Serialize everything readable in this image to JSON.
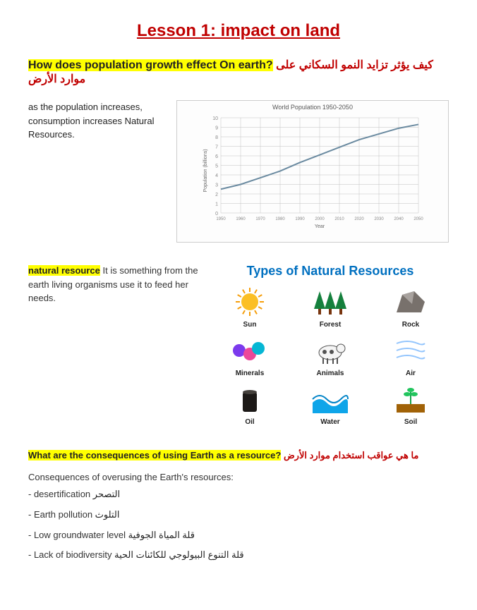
{
  "title": "Lesson 1: impact on land",
  "q1": {
    "text_en": "How does population growth effect On earth?",
    "text_ar": "كيف يؤثر تزايد النمو السكاني على موارد الأرض"
  },
  "s1_text": "as the population increases, consumption increases Natural Resources.",
  "chart": {
    "title": "World Population 1950-2050",
    "x_label": "Year",
    "y_label": "Population (billions)",
    "x_start": 1950,
    "x_end": 2050,
    "y_start": 0,
    "y_end": 10,
    "x_ticks": [
      "1950",
      "1960",
      "1970",
      "1980",
      "1990",
      "2000",
      "2010",
      "2020",
      "2030",
      "2040",
      "2050"
    ],
    "line_color": "#6a8aa0",
    "grid_color": "#c0c0c0",
    "points": [
      {
        "x": 1950,
        "y": 2.5
      },
      {
        "x": 1960,
        "y": 3.0
      },
      {
        "x": 1970,
        "y": 3.7
      },
      {
        "x": 1980,
        "y": 4.4
      },
      {
        "x": 1990,
        "y": 5.3
      },
      {
        "x": 2000,
        "y": 6.1
      },
      {
        "x": 2010,
        "y": 6.9
      },
      {
        "x": 2020,
        "y": 7.7
      },
      {
        "x": 2030,
        "y": 8.3
      },
      {
        "x": 2040,
        "y": 8.9
      },
      {
        "x": 2050,
        "y": 9.3
      }
    ]
  },
  "s2": {
    "term": "natural resource",
    "def": " It is something from the earth living organisms use it to feed her needs."
  },
  "resources": {
    "title": "Types of Natural Resources",
    "items": [
      {
        "label": "Sun",
        "color": "#fbbf24"
      },
      {
        "label": "Forest",
        "color": "#15803d"
      },
      {
        "label": "Rock",
        "color": "#78716c"
      },
      {
        "label": "Minerals",
        "color": "#7c3aed"
      },
      {
        "label": "Animals",
        "color": "#525252"
      },
      {
        "label": "Air",
        "color": "#93c5fd"
      },
      {
        "label": "Oil",
        "color": "#1c1917"
      },
      {
        "label": "Water",
        "color": "#0ea5e9"
      },
      {
        "label": "Soil",
        "color": "#a16207"
      }
    ]
  },
  "q2": {
    "text_en": "What are the consequences of using Earth as a resource?",
    "text_ar": "ما هي عواقب استخدام موارد الأرض"
  },
  "cons": {
    "heading": "Consequences of overusing the Earth's resources:",
    "items": [
      {
        "en": "- desertification ",
        "ar": "التصحر"
      },
      {
        "en": "- Earth pollution ",
        "ar": "التلوث"
      },
      {
        "en": "- Low groundwater level ",
        "ar": "قلة المياة الجوفية"
      },
      {
        "en": "- Lack of biodiversity ",
        "ar": "قلة التنوع البيولوجي للكائنات الحية"
      }
    ]
  }
}
